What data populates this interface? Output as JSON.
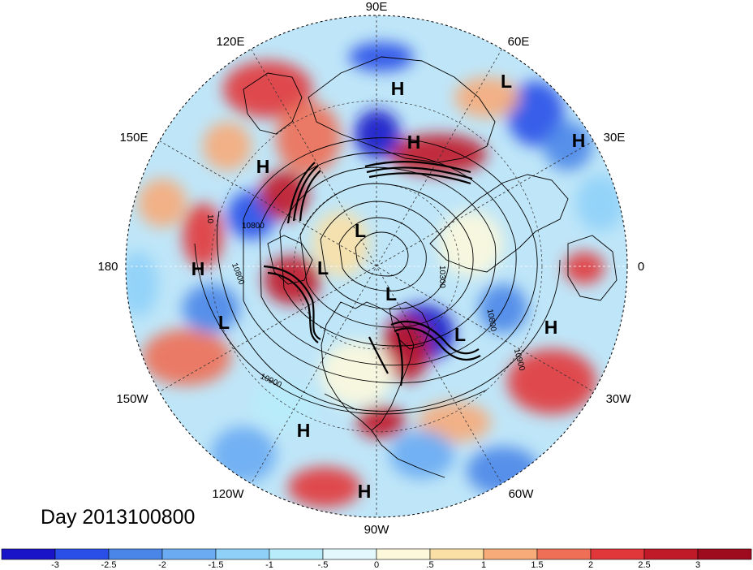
{
  "title": "Day 2013100800",
  "longitude_labels": {
    "e90": "90E",
    "e60": "60E",
    "e30": "30E",
    "zero": "0",
    "w30": "30W",
    "w60": "60W",
    "w90": "90W",
    "w120": "120W",
    "w150": "150W",
    "d180": "180",
    "e150": "150E",
    "e120": "120E"
  },
  "pressure_centers": [
    {
      "label": "H",
      "lon": "near 80E"
    },
    {
      "label": "L",
      "lon": "near 50E"
    },
    {
      "label": "H",
      "lon": "near 75E"
    },
    {
      "label": "H",
      "lon": "near 30E"
    },
    {
      "label": "H",
      "lon": "near 140E"
    },
    {
      "label": "L",
      "lon": "near 140E"
    },
    {
      "label": "L",
      "lon": "near 150E"
    },
    {
      "label": "H",
      "lon": "near 180"
    },
    {
      "label": "L",
      "lon": "near 160W"
    },
    {
      "label": "L",
      "lon": "near 100W"
    },
    {
      "label": "L",
      "lon": "near 60W"
    },
    {
      "label": "H",
      "lon": "near 30W"
    },
    {
      "label": "H",
      "lon": "near 120W"
    },
    {
      "label": "H",
      "lon": "near 90W"
    }
  ],
  "contour_labels": [
    "10800",
    "10800",
    "10900",
    "10800",
    "10900",
    "10300",
    "10"
  ],
  "colorbar": {
    "ticks": [
      "-3",
      "-2.5",
      "-2",
      "-1.5",
      "-1",
      "-.5",
      "0",
      ".5",
      "1",
      "1.5",
      "2",
      "2.5",
      "3"
    ],
    "colors": [
      "#1a14c8",
      "#2a4fe8",
      "#4a86e8",
      "#6aabf2",
      "#8fd0f8",
      "#b8ecfb",
      "#e2f8fd",
      "#fdf8dc",
      "#fbe0a6",
      "#f7ab79",
      "#ee6f55",
      "#e2373a",
      "#c01a28",
      "#9e0a1e"
    ]
  }
}
